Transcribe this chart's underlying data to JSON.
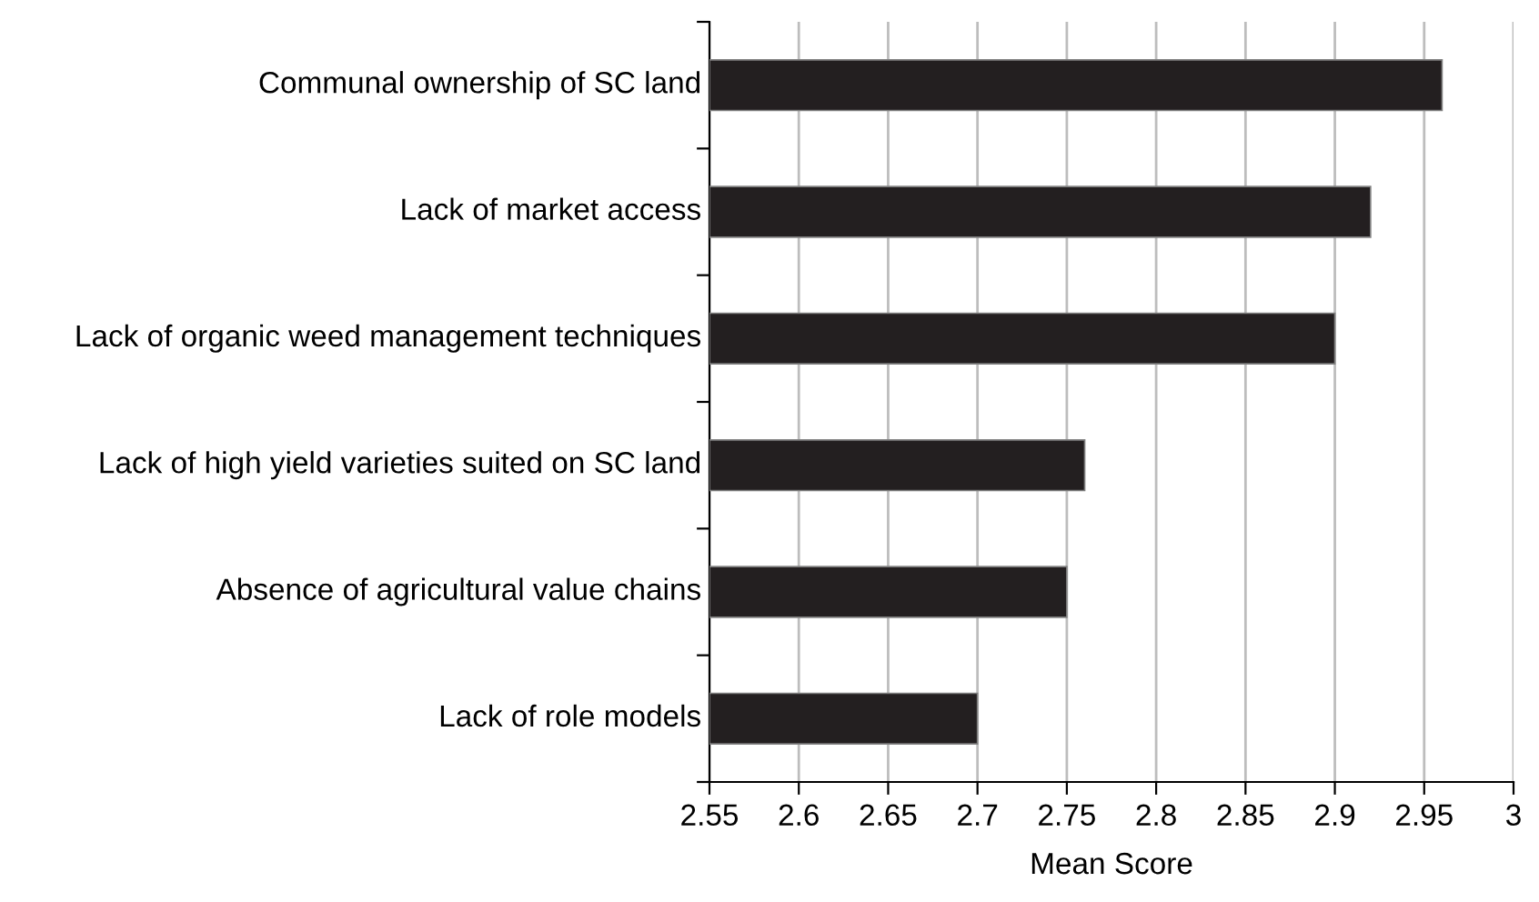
{
  "chart_data": {
    "type": "bar",
    "orientation": "horizontal",
    "xlabel": "Mean Score",
    "categories": [
      "Communal ownership of SC land",
      "Lack of market access",
      "Lack of organic weed management techniques",
      "Lack of high yield varieties suited on SC land",
      "Absence of agricultural value chains",
      "Lack of role models"
    ],
    "values": [
      2.96,
      2.92,
      2.9,
      2.76,
      2.75,
      2.7
    ],
    "color": "#231f20",
    "xlim": [
      2.55,
      3
    ],
    "xticks": [
      2.55,
      2.6,
      2.65,
      2.7,
      2.75,
      2.8,
      2.85,
      2.9,
      2.95,
      3
    ],
    "grid": "x",
    "legend": false
  }
}
